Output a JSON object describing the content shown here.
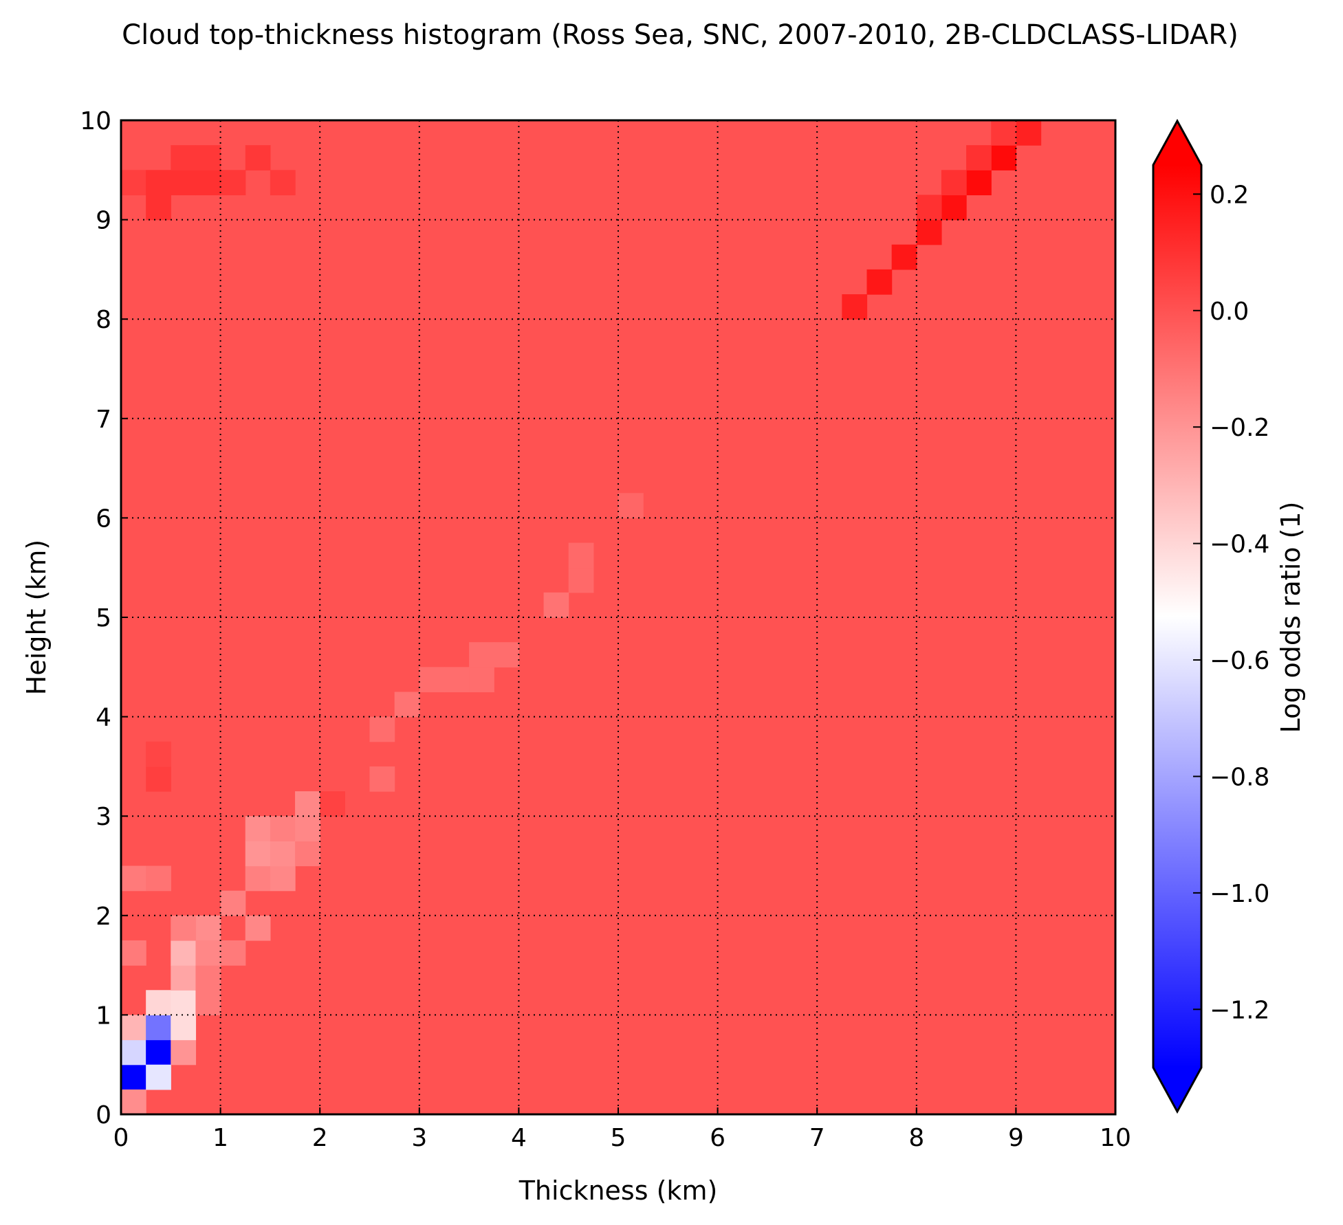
{
  "chart_data": {
    "type": "heatmap",
    "title": "Cloud top-thickness histogram (Ross Sea, SNC, 2007-2010, 2B-CLDCLASS-LIDAR)",
    "xlabel": "Thickness (km)",
    "ylabel": "Height (km)",
    "xlim": [
      0,
      10
    ],
    "ylim": [
      0,
      10
    ],
    "x_ticks": [
      "0",
      "1",
      "2",
      "3",
      "4",
      "5",
      "6",
      "7",
      "8",
      "9",
      "10"
    ],
    "y_ticks": [
      "0",
      "1",
      "2",
      "3",
      "4",
      "5",
      "6",
      "7",
      "8",
      "9",
      "10"
    ],
    "grid": true,
    "bin_size_km": 0.25,
    "background_value": 0.0,
    "colormap": {
      "name": "bwr",
      "vmin": -1.3,
      "vmax": 0.25,
      "low_color": "#0000ff",
      "mid_color": "#ffffff",
      "high_color": "#ff0000",
      "extend": "both"
    },
    "colorbar": {
      "label": "Log odds ratio (1)",
      "ticks": [
        {
          "value": 0.2,
          "label": "0.2"
        },
        {
          "value": 0.0,
          "label": "0.0"
        },
        {
          "value": -0.2,
          "label": "−0.2"
        },
        {
          "value": -0.4,
          "label": "−0.4"
        },
        {
          "value": -0.6,
          "label": "−0.6"
        },
        {
          "value": -0.8,
          "label": "−0.8"
        },
        {
          "value": -1.0,
          "label": "−1.0"
        },
        {
          "value": -1.2,
          "label": "−1.2"
        }
      ]
    },
    "cells": [
      {
        "x": 0.0,
        "y": 0.25,
        "value": -1.3
      },
      {
        "x": 0.0,
        "y": 0.5,
        "value": -0.65
      },
      {
        "x": 0.0,
        "y": 0.75,
        "value": -0.3
      },
      {
        "x": 0.0,
        "y": 0.0,
        "value": -0.18
      },
      {
        "x": 0.25,
        "y": 0.5,
        "value": -1.3
      },
      {
        "x": 0.25,
        "y": 0.25,
        "value": -0.6
      },
      {
        "x": 0.25,
        "y": 0.75,
        "value": -0.95
      },
      {
        "x": 0.25,
        "y": 1.0,
        "value": -0.4
      },
      {
        "x": 0.5,
        "y": 0.5,
        "value": -0.2
      },
      {
        "x": 0.5,
        "y": 0.75,
        "value": -0.42
      },
      {
        "x": 0.5,
        "y": 1.0,
        "value": -0.42
      },
      {
        "x": 0.5,
        "y": 1.25,
        "value": -0.25
      },
      {
        "x": 0.5,
        "y": 1.5,
        "value": -0.3
      },
      {
        "x": 0.75,
        "y": 1.0,
        "value": -0.12
      },
      {
        "x": 0.75,
        "y": 1.25,
        "value": -0.12
      },
      {
        "x": 0.75,
        "y": 1.75,
        "value": -0.18
      },
      {
        "x": 1.0,
        "y": 1.5,
        "value": -0.12
      },
      {
        "x": 1.0,
        "y": 2.0,
        "value": -0.14
      },
      {
        "x": 1.25,
        "y": 1.75,
        "value": -0.16
      },
      {
        "x": 1.25,
        "y": 2.25,
        "value": -0.14
      },
      {
        "x": 1.25,
        "y": 2.5,
        "value": -0.2
      },
      {
        "x": 1.25,
        "y": 2.75,
        "value": -0.18
      },
      {
        "x": 1.5,
        "y": 2.25,
        "value": -0.16
      },
      {
        "x": 1.5,
        "y": 2.5,
        "value": -0.18
      },
      {
        "x": 1.5,
        "y": 2.75,
        "value": -0.14
      },
      {
        "x": 1.75,
        "y": 2.5,
        "value": -0.12
      },
      {
        "x": 1.75,
        "y": 2.75,
        "value": -0.16
      },
      {
        "x": 1.75,
        "y": 3.0,
        "value": -0.16
      },
      {
        "x": 2.0,
        "y": 3.0,
        "value": 0.05
      },
      {
        "x": 0.0,
        "y": 1.5,
        "value": -0.12
      },
      {
        "x": 0.0,
        "y": 2.25,
        "value": -0.12
      },
      {
        "x": 0.25,
        "y": 2.25,
        "value": -0.1
      },
      {
        "x": 0.25,
        "y": 3.25,
        "value": 0.06
      },
      {
        "x": 0.25,
        "y": 3.5,
        "value": 0.04
      },
      {
        "x": 0.5,
        "y": 1.75,
        "value": -0.14
      },
      {
        "x": 0.75,
        "y": 1.5,
        "value": -0.16
      },
      {
        "x": 2.5,
        "y": 3.25,
        "value": -0.08
      },
      {
        "x": 2.5,
        "y": 3.75,
        "value": -0.08
      },
      {
        "x": 2.75,
        "y": 4.0,
        "value": -0.1
      },
      {
        "x": 3.0,
        "y": 4.25,
        "value": -0.08
      },
      {
        "x": 3.25,
        "y": 4.25,
        "value": -0.08
      },
      {
        "x": 3.5,
        "y": 4.25,
        "value": -0.08
      },
      {
        "x": 3.5,
        "y": 4.5,
        "value": -0.08
      },
      {
        "x": 3.75,
        "y": 4.5,
        "value": -0.08
      },
      {
        "x": 4.25,
        "y": 5.0,
        "value": -0.1
      },
      {
        "x": 4.5,
        "y": 5.25,
        "value": -0.07
      },
      {
        "x": 4.5,
        "y": 5.5,
        "value": -0.07
      },
      {
        "x": 5.0,
        "y": 6.0,
        "value": -0.06
      },
      {
        "x": 0.0,
        "y": 9.25,
        "value": 0.06
      },
      {
        "x": 0.25,
        "y": 9.25,
        "value": 0.1
      },
      {
        "x": 0.5,
        "y": 9.25,
        "value": 0.1
      },
      {
        "x": 0.75,
        "y": 9.25,
        "value": 0.1
      },
      {
        "x": 1.0,
        "y": 9.25,
        "value": 0.08
      },
      {
        "x": 0.25,
        "y": 9.0,
        "value": 0.1
      },
      {
        "x": 0.5,
        "y": 9.5,
        "value": 0.08
      },
      {
        "x": 0.75,
        "y": 9.5,
        "value": 0.08
      },
      {
        "x": 1.25,
        "y": 9.5,
        "value": 0.08
      },
      {
        "x": 1.5,
        "y": 9.25,
        "value": 0.07
      },
      {
        "x": 7.25,
        "y": 8.0,
        "value": 0.15
      },
      {
        "x": 7.5,
        "y": 8.25,
        "value": 0.18
      },
      {
        "x": 7.75,
        "y": 8.5,
        "value": 0.18
      },
      {
        "x": 8.0,
        "y": 8.75,
        "value": 0.18
      },
      {
        "x": 8.25,
        "y": 9.0,
        "value": 0.2
      },
      {
        "x": 8.5,
        "y": 9.25,
        "value": 0.22
      },
      {
        "x": 8.75,
        "y": 9.5,
        "value": 0.22
      },
      {
        "x": 9.0,
        "y": 9.75,
        "value": 0.15
      },
      {
        "x": 8.0,
        "y": 9.0,
        "value": 0.1
      },
      {
        "x": 8.25,
        "y": 9.25,
        "value": 0.1
      },
      {
        "x": 8.5,
        "y": 9.5,
        "value": 0.1
      },
      {
        "x": 8.75,
        "y": 9.75,
        "value": 0.08
      }
    ]
  }
}
